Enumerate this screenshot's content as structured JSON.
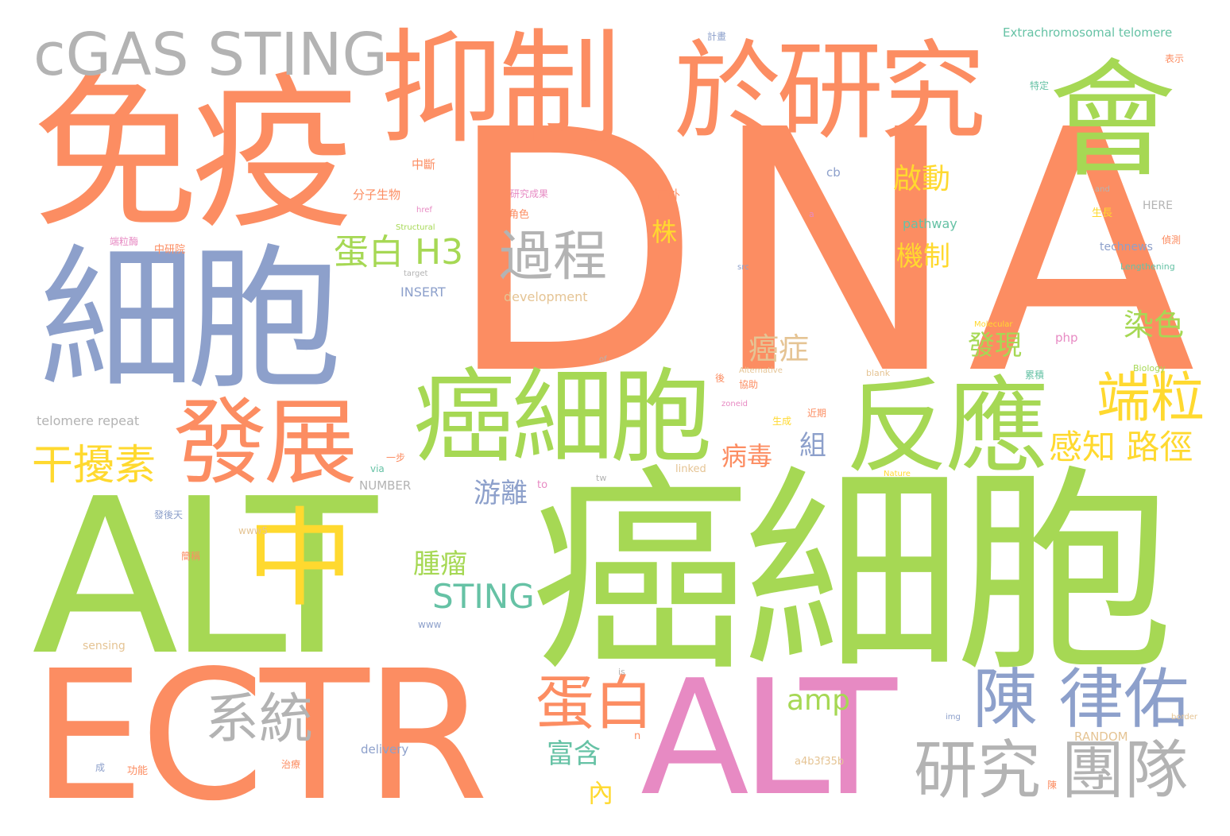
{
  "palette": {
    "orange": "#fc8d62",
    "green": "#a6d854",
    "blue": "#8da0cb",
    "grey": "#b3b3b3",
    "yellow": "#ffd92f",
    "pink": "#e78ac3",
    "teal": "#66c2a5",
    "tan": "#e5c494"
  },
  "words": [
    {
      "text": "DNA",
      "color": "orange"
    },
    {
      "text": "癌細胞",
      "color": "green"
    },
    {
      "text": "ALT",
      "color": "green"
    },
    {
      "text": "ECTR",
      "color": "orange"
    },
    {
      "text": "免疫",
      "color": "orange"
    },
    {
      "text": "細胞",
      "color": "blue"
    },
    {
      "text": "抑制",
      "color": "orange"
    },
    {
      "text": "於研究",
      "color": "orange"
    },
    {
      "text": "會",
      "color": "green"
    },
    {
      "text": "cGAS STING",
      "color": "grey"
    },
    {
      "text": "ALT",
      "color": "pink"
    },
    {
      "text": "癌細胞",
      "color": "green"
    },
    {
      "text": "反應",
      "color": "green"
    },
    {
      "text": "發展",
      "color": "orange"
    },
    {
      "text": "中",
      "color": "yellow"
    },
    {
      "text": "陳 律佑",
      "color": "blue"
    },
    {
      "text": "研究 團隊",
      "color": "grey"
    },
    {
      "text": "過程",
      "color": "grey"
    },
    {
      "text": "端粒",
      "color": "yellow"
    },
    {
      "text": "系統",
      "color": "grey"
    },
    {
      "text": "蛋白",
      "color": "orange"
    },
    {
      "text": "干擾素",
      "color": "yellow"
    },
    {
      "text": "蛋白 H3",
      "color": "green"
    },
    {
      "text": "感知 路徑",
      "color": "yellow"
    },
    {
      "text": "STING",
      "color": "teal"
    },
    {
      "text": "啟動",
      "color": "yellow"
    },
    {
      "text": "機制",
      "color": "yellow"
    },
    {
      "text": "染色",
      "color": "green"
    },
    {
      "text": "癌症",
      "color": "tan"
    },
    {
      "text": "發現",
      "color": "green"
    },
    {
      "text": "腫瘤",
      "color": "green"
    },
    {
      "text": "游離",
      "color": "blue"
    },
    {
      "text": "富含",
      "color": "teal"
    },
    {
      "text": "amp",
      "color": "green"
    },
    {
      "text": "病毒",
      "color": "orange"
    },
    {
      "text": "組",
      "color": "blue"
    },
    {
      "text": "株",
      "color": "yellow"
    },
    {
      "text": "內",
      "color": "yellow"
    },
    {
      "text": "Extrachromosomal telomere",
      "color": "teal"
    },
    {
      "text": "telomere repeat",
      "color": "grey"
    },
    {
      "text": "分子生物",
      "color": "orange"
    },
    {
      "text": "中斷",
      "color": "orange"
    },
    {
      "text": "INSERT",
      "color": "blue"
    },
    {
      "text": "development",
      "color": "tan"
    },
    {
      "text": "pathway",
      "color": "teal"
    },
    {
      "text": "technews",
      "color": "blue"
    },
    {
      "text": "HERE",
      "color": "grey"
    },
    {
      "text": "NUMBER",
      "color": "grey"
    },
    {
      "text": "RANDOM",
      "color": "tan"
    },
    {
      "text": "delivery",
      "color": "blue"
    },
    {
      "text": "sensing",
      "color": "tan"
    },
    {
      "text": "a4b3f35b",
      "color": "tan"
    },
    {
      "text": "在外",
      "color": "orange"
    },
    {
      "text": "cb",
      "color": "blue"
    },
    {
      "text": "php",
      "color": "pink"
    },
    {
      "text": "Lengthening",
      "color": "teal"
    },
    {
      "text": "Structural",
      "color": "green"
    },
    {
      "text": "Molecular",
      "color": "yellow"
    },
    {
      "text": "Alternative",
      "color": "tan"
    },
    {
      "text": "Biology",
      "color": "green"
    },
    {
      "text": "Nature",
      "color": "yellow"
    },
    {
      "text": "linked",
      "color": "tan"
    },
    {
      "text": "blank",
      "color": "tan"
    },
    {
      "text": "target",
      "color": "grey"
    },
    {
      "text": "href",
      "color": "pink"
    },
    {
      "text": "src",
      "color": "blue"
    },
    {
      "text": "img",
      "color": "blue"
    },
    {
      "text": "border",
      "color": "tan"
    },
    {
      "text": "www",
      "color": "blue"
    },
    {
      "text": "www5",
      "color": "tan"
    },
    {
      "text": "zoneid",
      "color": "pink"
    },
    {
      "text": "via",
      "color": "teal"
    },
    {
      "text": "to",
      "color": "pink"
    },
    {
      "text": "tw",
      "color": "grey"
    },
    {
      "text": "of",
      "color": "grey"
    },
    {
      "text": "is",
      "color": "grey"
    },
    {
      "text": "n",
      "color": "orange"
    },
    {
      "text": "a",
      "color": "pink"
    },
    {
      "text": "and",
      "color": "grey"
    },
    {
      "text": "研究成果",
      "color": "pink"
    },
    {
      "text": "角色",
      "color": "orange"
    },
    {
      "text": "中研院",
      "color": "orange"
    },
    {
      "text": "端粒酶",
      "color": "pink"
    },
    {
      "text": "生長",
      "color": "yellow"
    },
    {
      "text": "偵測",
      "color": "orange"
    },
    {
      "text": "特定",
      "color": "teal"
    },
    {
      "text": "表示",
      "color": "orange"
    },
    {
      "text": "計畫",
      "color": "blue"
    },
    {
      "text": "累積",
      "color": "teal"
    },
    {
      "text": "協助",
      "color": "orange"
    },
    {
      "text": "後",
      "color": "orange"
    },
    {
      "text": "生成",
      "color": "yellow"
    },
    {
      "text": "近期",
      "color": "orange"
    },
    {
      "text": "一步",
      "color": "orange"
    },
    {
      "text": "發後天",
      "color": "blue"
    },
    {
      "text": "功能",
      "color": "orange"
    },
    {
      "text": "治療",
      "color": "orange"
    },
    {
      "text": "簡稱",
      "color": "orange"
    },
    {
      "text": "成",
      "color": "blue"
    },
    {
      "text": "陳",
      "color": "orange"
    }
  ]
}
